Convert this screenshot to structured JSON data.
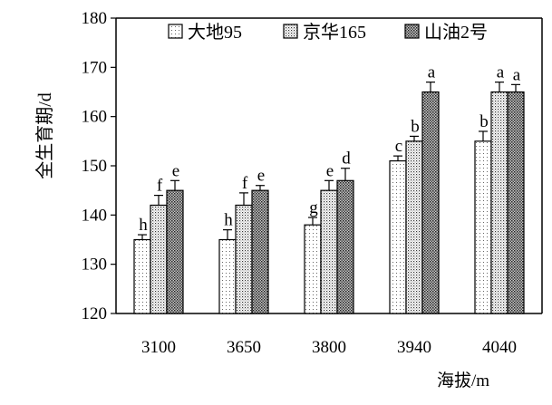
{
  "chart_data": {
    "type": "bar",
    "title": "",
    "xlabel": "海拔/m",
    "ylabel": "全生育期/d",
    "ylim": [
      120,
      180
    ],
    "yticks": [
      120,
      130,
      140,
      150,
      160,
      170,
      180
    ],
    "grid": false,
    "legend_position": "top",
    "categories": [
      "3100",
      "3650",
      "3800",
      "3940",
      "4040"
    ],
    "series": [
      {
        "name": "大地95",
        "pattern": "sparse-dots",
        "values": [
          135,
          135,
          138,
          151,
          155
        ],
        "errors": [
          1,
          2,
          1.5,
          1,
          2
        ],
        "labels": [
          "h",
          "h",
          "g",
          "c",
          "b"
        ]
      },
      {
        "name": "京华165",
        "pattern": "medium-dots",
        "values": [
          142,
          142,
          145,
          155,
          165
        ],
        "errors": [
          2,
          2.5,
          2,
          1,
          2
        ],
        "labels": [
          "f",
          "f",
          "e",
          "b",
          "a"
        ]
      },
      {
        "name": "山油2号",
        "pattern": "dense-grid",
        "values": [
          145,
          145,
          147,
          165,
          165
        ],
        "errors": [
          2,
          1,
          2.5,
          2,
          1.5
        ],
        "labels": [
          "e",
          "e",
          "d",
          "a",
          "a"
        ]
      }
    ]
  }
}
